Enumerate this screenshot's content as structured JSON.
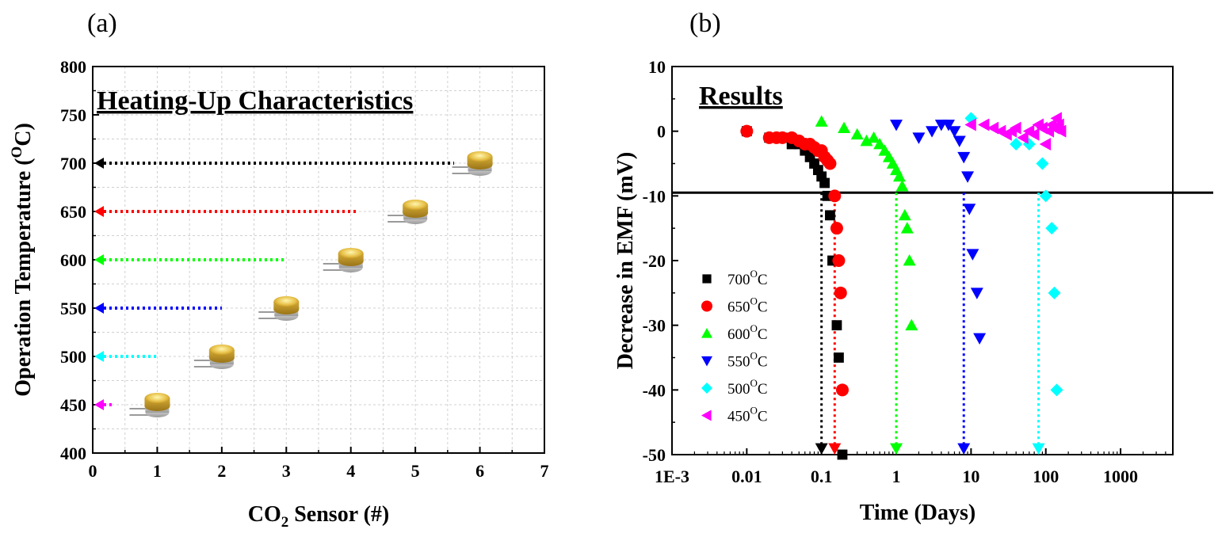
{
  "chart_data": [
    {
      "panel_label": "(a)",
      "type": "scatter",
      "title": "Heating-Up Characteristics",
      "xlabel": "CO",
      "xlabel_sub": "2",
      "xlabel_rest": " Sensor (#)",
      "ylabel": "Operation Temperature (",
      "ylabel_sup": "O",
      "ylabel_rest": "C)",
      "xlim": [
        0,
        7
      ],
      "ylim": [
        400,
        800
      ],
      "xticks": [
        0,
        1,
        2,
        3,
        4,
        5,
        6,
        7
      ],
      "yticks": [
        400,
        450,
        500,
        550,
        600,
        650,
        700,
        750,
        800
      ],
      "grid": true,
      "points": [
        {
          "sensor": 1,
          "temperature": 450,
          "color": "#ff00ff",
          "arrow_from_x": 0.3
        },
        {
          "sensor": 2,
          "temperature": 500,
          "color": "#00ffff",
          "arrow_from_x": 1.0
        },
        {
          "sensor": 3,
          "temperature": 550,
          "color": "#0000ff",
          "arrow_from_x": 2.0
        },
        {
          "sensor": 4,
          "temperature": 600,
          "color": "#00ff00",
          "arrow_from_x": 3.0
        },
        {
          "sensor": 5,
          "temperature": 650,
          "color": "#ff0000",
          "arrow_from_x": 4.1
        },
        {
          "sensor": 6,
          "temperature": 700,
          "color": "#000000",
          "arrow_from_x": 5.6
        }
      ]
    },
    {
      "panel_label": "(b)",
      "type": "scatter",
      "title": "Results",
      "xlabel": "Time (Days)",
      "ylabel": "Decrease in EMF (mV)",
      "xscale": "log",
      "xlim": [
        0.001,
        5000
      ],
      "ylim": [
        -50,
        10
      ],
      "xticks": [
        "1E-3",
        "0.01",
        "0.1",
        "1",
        "10",
        "100",
        "1000"
      ],
      "yticks": [
        10,
        0,
        -10,
        -20,
        -30,
        -40,
        -50
      ],
      "threshold_y": -9.5,
      "legend_position": "lower-left",
      "series": [
        {
          "name": "700",
          "unit_sup": "O",
          "unit": "C",
          "marker": "square",
          "color": "#000000",
          "x": [
            0.01,
            0.02,
            0.03,
            0.04,
            0.05,
            0.06,
            0.07,
            0.08,
            0.09,
            0.1,
            0.11,
            0.12,
            0.13,
            0.14,
            0.16,
            0.17,
            0.19
          ],
          "y": [
            0,
            -1,
            -1,
            -2,
            -2,
            -3,
            -4,
            -5,
            -6,
            -7,
            -8,
            -10,
            -13,
            -20,
            -30,
            -35,
            -50
          ],
          "failure_day": 0.1
        },
        {
          "name": "650",
          "unit_sup": "O",
          "unit": "C",
          "marker": "circle",
          "color": "#ff0000",
          "x": [
            0.01,
            0.02,
            0.025,
            0.03,
            0.04,
            0.05,
            0.06,
            0.07,
            0.08,
            0.09,
            0.1,
            0.11,
            0.12,
            0.13,
            0.15,
            0.16,
            0.17,
            0.18,
            0.19
          ],
          "y": [
            0,
            -1,
            -1,
            -1,
            -1,
            -1.5,
            -2,
            -2,
            -2.5,
            -3,
            -3,
            -4,
            -4.5,
            -5,
            -10,
            -15,
            -20,
            -25,
            -40
          ],
          "failure_day": 0.15
        },
        {
          "name": "600",
          "unit_sup": "O",
          "unit": "C",
          "marker": "triangle-up",
          "color": "#00ff00",
          "x": [
            0.1,
            0.2,
            0.3,
            0.4,
            0.5,
            0.6,
            0.7,
            0.8,
            0.9,
            1.0,
            1.1,
            1.2,
            1.3,
            1.4,
            1.5,
            1.6
          ],
          "y": [
            1.5,
            0.5,
            -0.5,
            -1.5,
            -1,
            -2,
            -3,
            -4,
            -5,
            -6,
            -7,
            -8.5,
            -13,
            -15,
            -20,
            -30
          ],
          "failure_day": 1.0
        },
        {
          "name": "550",
          "unit_sup": "O",
          "unit": "C",
          "marker": "triangle-down",
          "color": "#0000ff",
          "x": [
            1.0,
            2.0,
            3.0,
            4.0,
            5.0,
            6.0,
            7.0,
            8.0,
            9.0,
            9.5,
            10.5,
            12,
            13
          ],
          "y": [
            1,
            -1,
            0,
            1,
            1,
            0,
            -1.5,
            -4,
            -7,
            -12,
            -19,
            -25,
            -32
          ],
          "failure_day": 8.0
        },
        {
          "name": "500",
          "unit_sup": "O",
          "unit": "C",
          "marker": "diamond",
          "color": "#00ffff",
          "x": [
            10,
            40,
            60,
            90,
            100,
            120,
            130,
            140
          ],
          "y": [
            2,
            -2,
            -2,
            -5,
            -10,
            -15,
            -25,
            -40
          ],
          "failure_day": 80
        },
        {
          "name": "450",
          "unit_sup": "O",
          "unit": "C",
          "marker": "triangle-left",
          "color": "#ff00ff",
          "x": [
            10,
            15,
            20,
            25,
            30,
            35,
            40,
            50,
            60,
            70,
            80,
            90,
            100,
            110,
            120,
            130,
            140,
            150,
            160
          ],
          "y": [
            1,
            1,
            0.5,
            0,
            -0.5,
            0,
            0.5,
            -1,
            0,
            -0.5,
            1,
            0.5,
            -2,
            0,
            1,
            0.5,
            2,
            1,
            0
          ],
          "failure_day": null
        }
      ]
    }
  ]
}
